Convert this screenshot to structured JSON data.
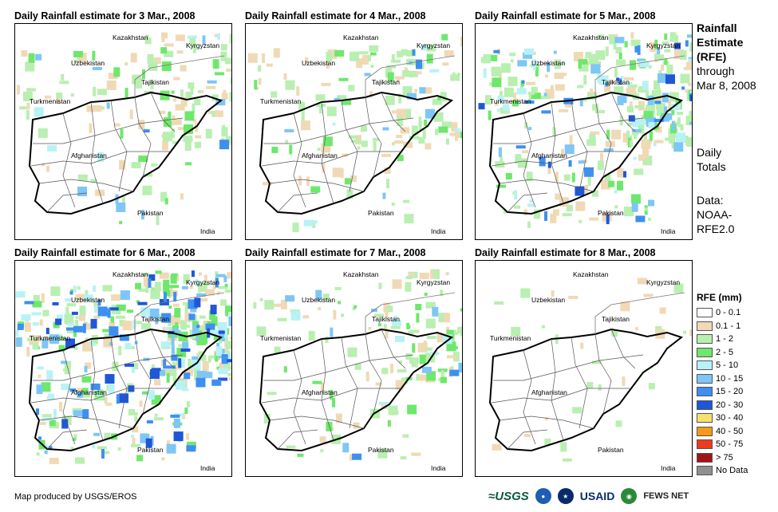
{
  "panels": [
    {
      "title": "Daily Rainfall estimate for 3 Mar., 2008",
      "level": "light"
    },
    {
      "title": "Daily Rainfall estimate for 4 Mar., 2008",
      "level": "light"
    },
    {
      "title": "Daily Rainfall estimate for 5 Mar., 2008",
      "level": "medium"
    },
    {
      "title": "Daily Rainfall estimate for 6 Mar., 2008",
      "level": "heavy"
    },
    {
      "title": "Daily Rainfall estimate for 7 Mar., 2008",
      "level": "light"
    },
    {
      "title": "Daily Rainfall estimate for 8 Mar., 2008",
      "level": "minimal"
    }
  ],
  "map_labels": {
    "kazakhstan": "Kazakhstan",
    "kyrgyzstan": "Kyrgyzstan",
    "uzbekistan": "Uzbekistan",
    "tajikistan": "Tajikistan",
    "turkmenistan": "Turkmenistan",
    "afghanistan": "Afghanistan",
    "pakistan": "Pakistan",
    "india": "India"
  },
  "side": {
    "title_line1": "Rainfall",
    "title_line2": "Estimate",
    "title_line3": "(RFE)",
    "through": "through",
    "date": "Mar 8, 2008",
    "daily1": "Daily",
    "daily2": "Totals",
    "data1": "Data:",
    "data2": "NOAA-",
    "data3": "RFE2.0"
  },
  "legend": {
    "title": "RFE (mm)",
    "items": [
      {
        "label": "0 - 0.1",
        "color": "#ffffff"
      },
      {
        "label": "0.1 - 1",
        "color": "#f0d9b5"
      },
      {
        "label": "1 - 2",
        "color": "#b9efb0"
      },
      {
        "label": "2 - 5",
        "color": "#6ee86b"
      },
      {
        "label": "5 - 10",
        "color": "#b8f2f6"
      },
      {
        "label": "10 - 15",
        "color": "#7ec6f5"
      },
      {
        "label": "15 - 20",
        "color": "#3e8ff0"
      },
      {
        "label": "20 - 30",
        "color": "#1f57d8"
      },
      {
        "label": "30 - 40",
        "color": "#f8e070"
      },
      {
        "label": "40 - 50",
        "color": "#f59a1a"
      },
      {
        "label": "50 - 75",
        "color": "#ee3b1b"
      },
      {
        "label": "> 75",
        "color": "#a31414"
      },
      {
        "label": "No Data",
        "color": "#909090"
      }
    ]
  },
  "footer": {
    "credit": "Map produced by USGS/EROS",
    "usgs": "≈USGS",
    "usaid": "USAID",
    "fews": "FEWS NET"
  }
}
